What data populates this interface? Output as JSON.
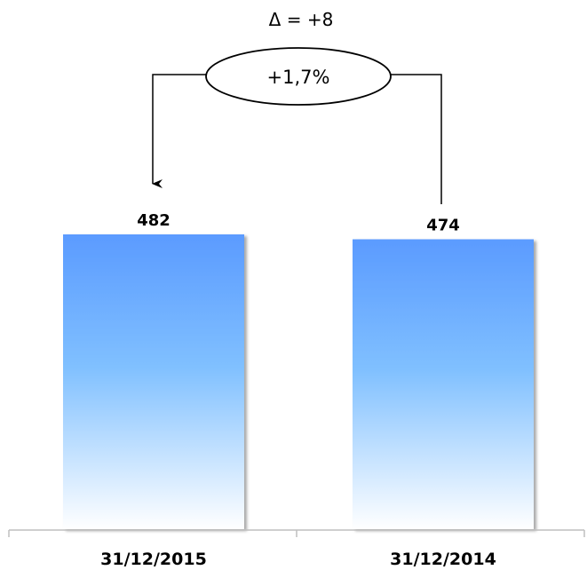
{
  "chart_data": {
    "type": "bar",
    "categories": [
      "31/12/2015",
      "31/12/2014"
    ],
    "values": [
      482,
      474
    ],
    "value_labels": [
      "482",
      "474"
    ],
    "title": "",
    "xlabel": "",
    "ylabel": "",
    "annotation": {
      "delta_label": "Δ = +8",
      "percent_label": "+1,7%",
      "arrow_direction": "from 31/12/2014 to 31/12/2015"
    },
    "colors": {
      "bar_top": "#5b9bff",
      "bar_mid": "#80c0ff",
      "bar_bottom": "#ffffff",
      "bar_shadow": "#999999",
      "axis": "#bfbfbf",
      "connector": "#000000"
    },
    "grid": false,
    "legend": "none"
  }
}
